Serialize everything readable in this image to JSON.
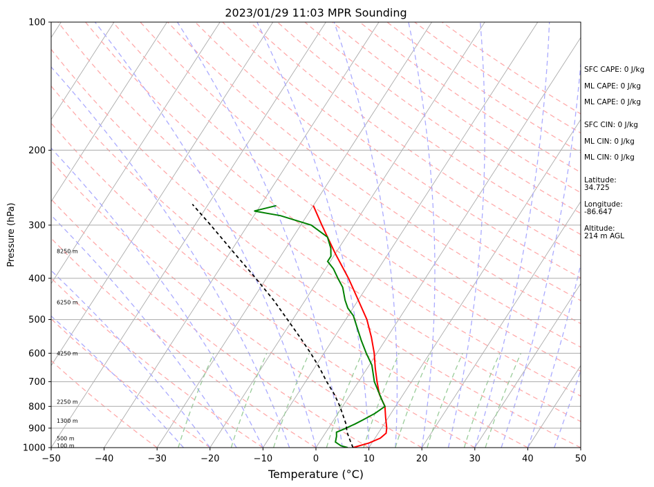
{
  "chart_data": {
    "type": "line",
    "title": "2023/01/29 11:03 MPR Sounding",
    "xlabel": "Temperature (°C)",
    "ylabel": "Pressure (hPa)",
    "xlim": [
      -50,
      50
    ],
    "ylim": [
      1000,
      100
    ],
    "yscale": "log",
    "x_ticks": [
      "−50",
      "−40",
      "−30",
      "−20",
      "−10",
      "0",
      "10",
      "20",
      "30",
      "40",
      "50"
    ],
    "y_ticks": [
      {
        "p": 100,
        "label": "100"
      },
      {
        "p": 200,
        "label": "200"
      },
      {
        "p": 300,
        "label": "300"
      },
      {
        "p": 400,
        "label": "400"
      },
      {
        "p": 500,
        "label": "500"
      },
      {
        "p": 600,
        "label": "600"
      },
      {
        "p": 700,
        "label": "700"
      },
      {
        "p": 800,
        "label": "800"
      },
      {
        "p": 900,
        "label": "900"
      },
      {
        "p": 1000,
        "label": "1000"
      }
    ],
    "grid": true,
    "series": [
      {
        "key": "temperature",
        "color": "#ff0000",
        "points": [
          [
            1000,
            7
          ],
          [
            975,
            9.5
          ],
          [
            950,
            11
          ],
          [
            925,
            11.5
          ],
          [
            900,
            11
          ],
          [
            850,
            9.5
          ],
          [
            800,
            8
          ],
          [
            750,
            5.5
          ],
          [
            700,
            3.5
          ],
          [
            650,
            1.5
          ],
          [
            600,
            -0.5
          ],
          [
            550,
            -3
          ],
          [
            500,
            -6
          ],
          [
            450,
            -10
          ],
          [
            400,
            -14.5
          ],
          [
            350,
            -20
          ],
          [
            300,
            -26
          ],
          [
            270,
            -30
          ]
        ]
      },
      {
        "key": "dewpoint",
        "color": "#008000",
        "points": [
          [
            1000,
            6
          ],
          [
            990,
            4.5
          ],
          [
            970,
            3
          ],
          [
            940,
            2.5
          ],
          [
            920,
            2
          ],
          [
            905,
            3
          ],
          [
            880,
            4.5
          ],
          [
            860,
            5.5
          ],
          [
            830,
            7
          ],
          [
            800,
            8
          ],
          [
            780,
            7
          ],
          [
            700,
            3
          ],
          [
            640,
            0.5
          ],
          [
            600,
            -2
          ],
          [
            560,
            -4.5
          ],
          [
            520,
            -7
          ],
          [
            490,
            -9
          ],
          [
            470,
            -11
          ],
          [
            450,
            -12.5
          ],
          [
            420,
            -14.5
          ],
          [
            400,
            -16.5
          ],
          [
            380,
            -18.5
          ],
          [
            365,
            -20.5
          ],
          [
            355,
            -20.5
          ],
          [
            340,
            -21.5
          ],
          [
            320,
            -23.5
          ],
          [
            300,
            -28
          ],
          [
            285,
            -35
          ],
          [
            278,
            -40.5
          ],
          [
            270,
            -37
          ]
        ]
      },
      {
        "key": "parcel",
        "color": "#000000",
        "dashed": true,
        "points": [
          [
            1000,
            7
          ],
          [
            960,
            5.5
          ],
          [
            920,
            4
          ],
          [
            880,
            2.8
          ],
          [
            850,
            1.6
          ],
          [
            800,
            -0.5
          ],
          [
            750,
            -3
          ],
          [
            700,
            -6
          ],
          [
            650,
            -9
          ],
          [
            600,
            -12.5
          ],
          [
            550,
            -16.5
          ],
          [
            500,
            -21
          ],
          [
            450,
            -26
          ],
          [
            400,
            -32
          ],
          [
            350,
            -39
          ],
          [
            300,
            -47
          ],
          [
            268,
            -53
          ]
        ]
      }
    ],
    "height_labels": [
      {
        "p": 345,
        "text": "8250 m"
      },
      {
        "p": 455,
        "text": "6250 m"
      },
      {
        "p": 600,
        "text": "4250 m"
      },
      {
        "p": 780,
        "text": "2250 m"
      },
      {
        "p": 865,
        "text": "1300 m"
      },
      {
        "p": 950,
        "text": "500 m"
      },
      {
        "p": 988,
        "text": "100 m"
      }
    ],
    "background_lines": {
      "isotherm_color": "#aaaaaa",
      "dry_adiabat_color": "#ffaaaa",
      "moist_adiabat_color": "#aaaaff",
      "mixing_ratio_color": "#99cc99"
    },
    "annotations": [
      {
        "text": "SFC CAPE: 0 J/kg"
      },
      {
        "text": "ML CAPE: 0 J/kg"
      },
      {
        "text": "ML CAPE: 0 J/kg"
      },
      {
        "text": "SFC CIN: 0 J/kg"
      },
      {
        "text": "ML CIN: 0 J/kg"
      },
      {
        "text": "ML CIN: 0 J/kg"
      },
      {
        "text": "Latitude:"
      },
      {
        "text": "34.725"
      },
      {
        "text": "Longitude:"
      },
      {
        "text": "-86.647"
      },
      {
        "text": "Altitude:"
      },
      {
        "text": "214 m AGL"
      }
    ]
  }
}
